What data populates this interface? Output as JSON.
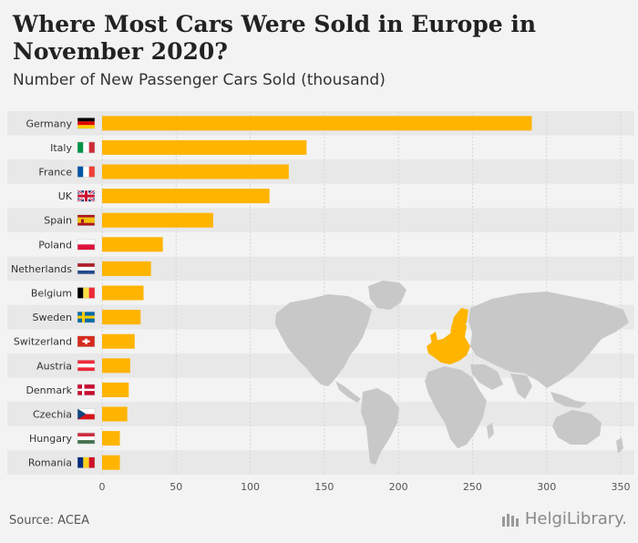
{
  "title": "Where Most Cars Were Sold in Europe in November 2020?",
  "subtitle": "Number of New Passenger Cars Sold (thousand)",
  "source": "Source: ACEA",
  "brand": "HelgiLibrary.",
  "colors": {
    "bar": "#ffb400",
    "map": "#c8c8c8",
    "europe": "#ffb400",
    "stripe": "#e8e8e8",
    "background": "#f3f3f3"
  },
  "chart_data": {
    "type": "bar",
    "orientation": "horizontal",
    "categories": [
      "Germany",
      "Italy",
      "France",
      "UK",
      "Spain",
      "Poland",
      "Netherlands",
      "Belgium",
      "Sweden",
      "Switzerland",
      "Austria",
      "Denmark",
      "Czechia",
      "Hungary",
      "Romania"
    ],
    "values": [
      290,
      138,
      126,
      113,
      75,
      41,
      33,
      28,
      26,
      22,
      19,
      18,
      17,
      12,
      12
    ],
    "xlim": [
      0,
      350
    ],
    "xticks": [
      0,
      50,
      100,
      150,
      200,
      250,
      300,
      350
    ],
    "title": "Where Most Cars Were Sold in Europe in November 2020?",
    "subtitle": "Number of New Passenger Cars Sold (thousand)",
    "grid": true,
    "flags": [
      "flag-germany",
      "flag-italy",
      "flag-france",
      "flag-uk",
      "flag-spain",
      "flag-poland",
      "flag-netherlands",
      "flag-belgium",
      "flag-sweden",
      "flag-switzerland",
      "flag-austria",
      "flag-denmark",
      "flag-czechia",
      "flag-hungary",
      "flag-romania"
    ]
  }
}
